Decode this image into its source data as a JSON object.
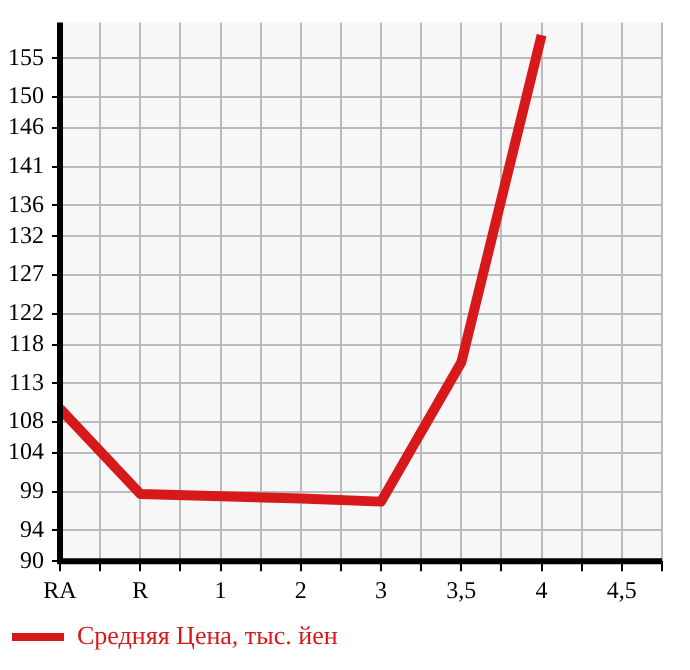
{
  "chart_data": {
    "type": "line",
    "categories": [
      "RA",
      "R",
      "1",
      "2",
      "3",
      "3,5",
      "4",
      "4,5"
    ],
    "series": [
      {
        "name": "Средняя Цена, тыс. йен",
        "color": "#d7191c",
        "values": [
          109.7,
          98.7,
          98.4,
          98.1,
          97.7,
          115.7,
          158,
          null
        ]
      }
    ],
    "ylim": [
      90,
      159.64
    ],
    "yticks": [
      90,
      94,
      99,
      104,
      108,
      113,
      118,
      122,
      127,
      132,
      136,
      141,
      146,
      150,
      155
    ],
    "grid": true,
    "legend": "bottom",
    "marker": "none",
    "line_style": "solid"
  }
}
